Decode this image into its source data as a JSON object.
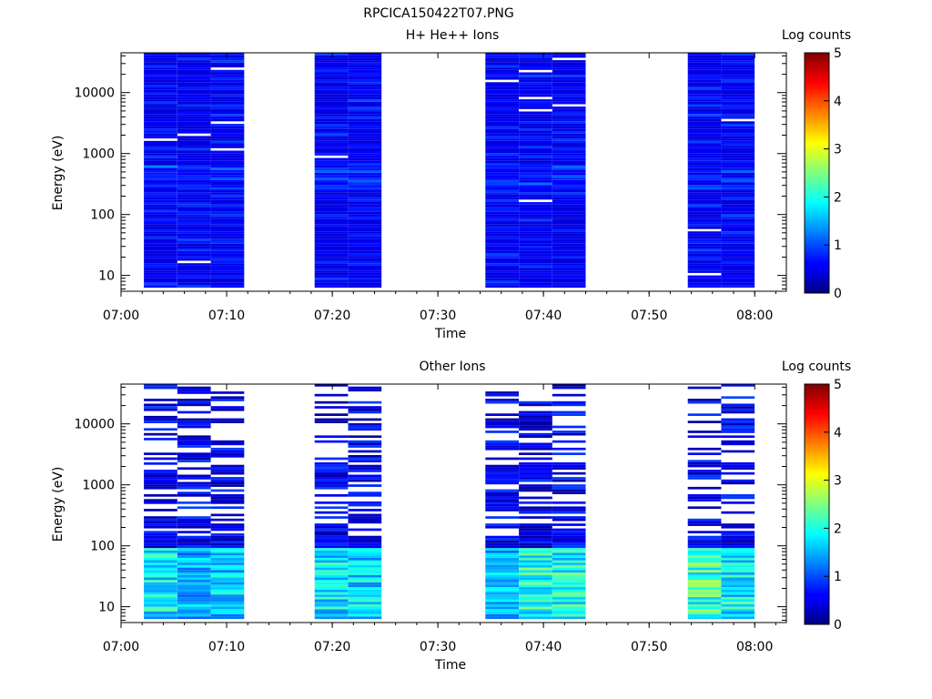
{
  "figure": {
    "title": "RPCICA150422T07.PNG"
  },
  "chart_data": [
    {
      "type": "heatmap",
      "title": "H+ He++ Ions",
      "xlabel": "Time",
      "ylabel": "Energy (eV)",
      "y_scale": "log",
      "ylim": [
        5.5,
        45000
      ],
      "xlim": [
        "07:00",
        "08:03"
      ],
      "x_ticks": [
        "07:00",
        "07:10",
        "07:20",
        "07:30",
        "07:40",
        "07:50",
        "08:00"
      ],
      "y_ticks": [
        10,
        100,
        1000,
        10000
      ],
      "y_tick_labels": [
        "10",
        "100",
        "1000",
        "10000"
      ],
      "colorbar": {
        "label": "Log counts",
        "range": [
          0,
          5
        ],
        "ticks": [
          "0",
          "1",
          "2",
          "3",
          "4",
          "5"
        ]
      },
      "columns": [
        {
          "start": "07:02:10",
          "end": "07:05:20",
          "max_log_counts": 2.0
        },
        {
          "start": "07:05:20",
          "end": "07:08:30",
          "max_log_counts": 1.8
        },
        {
          "start": "07:08:30",
          "end": "07:11:40",
          "max_log_counts": 1.8
        },
        {
          "start": "07:18:20",
          "end": "07:21:30",
          "max_log_counts": 1.7
        },
        {
          "start": "07:21:30",
          "end": "07:24:40",
          "max_log_counts": 1.5
        },
        {
          "start": "07:34:30",
          "end": "07:37:40",
          "max_log_counts": 1.6
        },
        {
          "start": "07:37:40",
          "end": "07:40:50",
          "max_log_counts": 1.7
        },
        {
          "start": "07:40:50",
          "end": "07:44:00",
          "max_log_counts": 1.6
        },
        {
          "start": "07:53:40",
          "end": "07:56:50",
          "max_log_counts": 1.2
        },
        {
          "start": "07:56:50",
          "end": "08:00:00",
          "max_log_counts": 1.5
        }
      ]
    },
    {
      "type": "heatmap",
      "title": "Other Ions",
      "xlabel": "Time",
      "ylabel": "Energy (eV)",
      "y_scale": "log",
      "ylim": [
        5.5,
        45000
      ],
      "xlim": [
        "07:00",
        "08:03"
      ],
      "x_ticks": [
        "07:00",
        "07:10",
        "07:20",
        "07:30",
        "07:40",
        "07:50",
        "08:00"
      ],
      "y_ticks": [
        10,
        100,
        1000,
        10000
      ],
      "y_tick_labels": [
        "10",
        "100",
        "1000",
        "10000"
      ],
      "colorbar": {
        "label": "Log counts",
        "range": [
          0,
          5
        ],
        "ticks": [
          "0",
          "1",
          "2",
          "3",
          "4",
          "5"
        ]
      },
      "columns": [
        {
          "start": "07:02:10",
          "end": "07:05:20",
          "max_log_counts": 2.3
        },
        {
          "start": "07:05:20",
          "end": "07:08:30",
          "max_log_counts": 1.9
        },
        {
          "start": "07:08:30",
          "end": "07:11:40",
          "max_log_counts": 2.1
        },
        {
          "start": "07:18:20",
          "end": "07:21:30",
          "max_log_counts": 2.3
        },
        {
          "start": "07:21:30",
          "end": "07:24:40",
          "max_log_counts": 2.2
        },
        {
          "start": "07:34:30",
          "end": "07:37:40",
          "max_log_counts": 2.0
        },
        {
          "start": "07:37:40",
          "end": "07:40:50",
          "max_log_counts": 2.6
        },
        {
          "start": "07:40:50",
          "end": "07:44:00",
          "max_log_counts": 2.5
        },
        {
          "start": "07:53:40",
          "end": "07:56:50",
          "max_log_counts": 2.8
        },
        {
          "start": "07:56:50",
          "end": "08:00:00",
          "max_log_counts": 2.4
        }
      ]
    }
  ]
}
